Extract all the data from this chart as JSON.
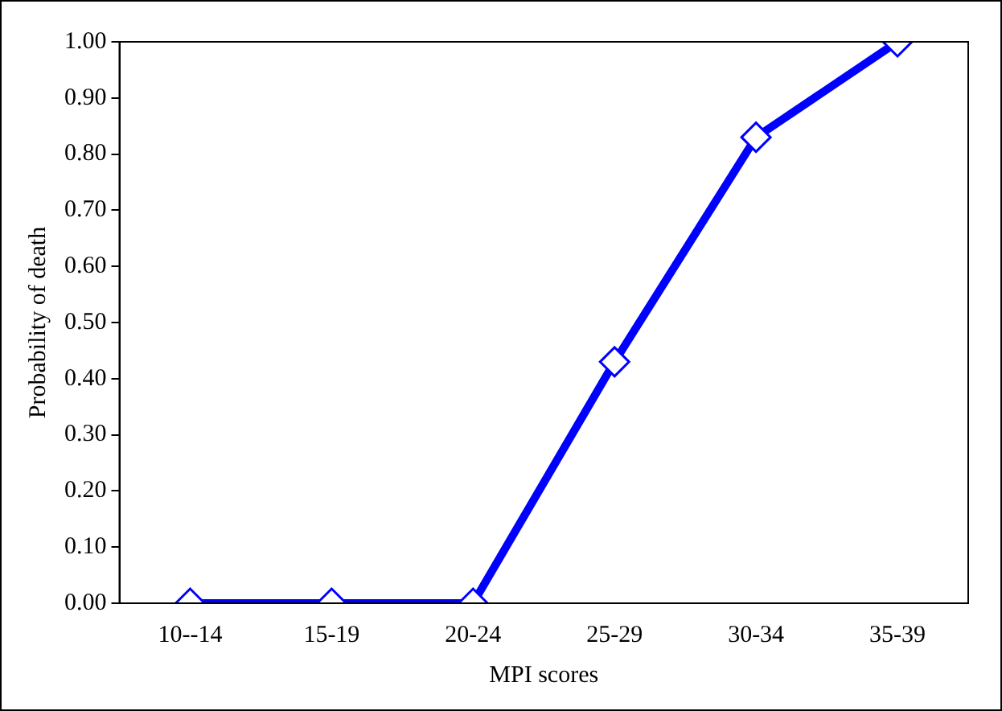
{
  "chart_data": {
    "type": "line",
    "xlabel": "MPI scores",
    "ylabel": "Probability of death",
    "categories": [
      "10--14",
      "15-19",
      "20-24",
      "25-29",
      "30-34",
      "35-39"
    ],
    "series": [
      {
        "color": "#0000ff",
        "values": [
          0,
          0,
          0,
          0.43,
          0.83,
          1.0
        ]
      }
    ],
    "ylim": [
      0,
      1
    ],
    "yticks": [
      {
        "value": 0,
        "label": "0.00"
      },
      {
        "value": 0.1,
        "label": "0.10"
      },
      {
        "value": 0.2,
        "label": "0.20"
      },
      {
        "value": 0.3,
        "label": "0.30"
      },
      {
        "value": 0.4,
        "label": "0.40"
      },
      {
        "value": 0.5,
        "label": "0.50"
      },
      {
        "value": 0.6,
        "label": "0.60"
      },
      {
        "value": 0.7,
        "label": "0.70"
      },
      {
        "value": 0.8,
        "label": "0.80"
      },
      {
        "value": 0.9,
        "label": "0.90"
      },
      {
        "value": 1,
        "label": "1.00"
      }
    ],
    "grid": false,
    "legend": false,
    "marker": "diamond",
    "line_style": "solid"
  }
}
